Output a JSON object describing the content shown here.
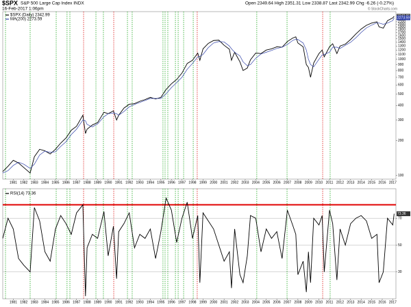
{
  "header": {
    "symbol": "$SPX",
    "name": "S&P 500 Large Cap Index INDX",
    "timestamp": "16-Feb-2017 1:06pm",
    "quote": "Open 2349.64 High 2351.31 Low 2338.87 Last 2342.99 Chg -6.26 (-0.27%)",
    "copyright": "© StockCharts.com"
  },
  "chart_data": [
    {
      "type": "line",
      "log_scale": true,
      "x": [
        1980.0,
        1980.5,
        1981.0,
        1981.5,
        1982.0,
        1982.6,
        1983.0,
        1983.5,
        1984.0,
        1984.5,
        1985.0,
        1985.5,
        1986.0,
        1986.5,
        1987.0,
        1987.6,
        1987.85,
        1988.0,
        1988.5,
        1989.0,
        1989.6,
        1990.0,
        1990.5,
        1990.8,
        1991.0,
        1991.5,
        1992.0,
        1992.5,
        1993.0,
        1993.5,
        1994.0,
        1994.5,
        1995.0,
        1995.5,
        1996.0,
        1996.5,
        1997.0,
        1997.5,
        1998.0,
        1998.5,
        1998.7,
        1999.0,
        1999.5,
        2000.0,
        2000.5,
        2001.0,
        2001.5,
        2001.7,
        2002.0,
        2002.5,
        2002.8,
        2003.2,
        2003.5,
        2004.0,
        2004.5,
        2005.0,
        2005.5,
        2006.0,
        2006.5,
        2007.0,
        2007.5,
        2007.8,
        2008.0,
        2008.5,
        2008.8,
        2009.0,
        2009.2,
        2009.5,
        2010.0,
        2010.3,
        2010.5,
        2011.0,
        2011.3,
        2011.7,
        2012.0,
        2012.5,
        2013.0,
        2013.5,
        2014.0,
        2014.5,
        2015.0,
        2015.5,
        2015.7,
        2016.1,
        2016.5,
        2017.0,
        2017.13
      ],
      "series": [
        {
          "name": "$SPX (Daily) 2342.99",
          "color": "#000000",
          "values": [
            108,
            120,
            135,
            128,
            117,
            105,
            145,
            168,
            163,
            153,
            168,
            190,
            210,
            245,
            265,
            330,
            230,
            250,
            272,
            285,
            350,
            340,
            360,
            300,
            330,
            380,
            410,
            415,
            435,
            450,
            470,
            455,
            470,
            550,
            615,
            670,
            760,
            920,
            980,
            1130,
            980,
            1230,
            1370,
            1450,
            1460,
            1320,
            1220,
            980,
            1150,
            950,
            800,
            840,
            990,
            1130,
            1120,
            1200,
            1230,
            1280,
            1270,
            1420,
            1520,
            1560,
            1380,
            1280,
            900,
            850,
            700,
            930,
            1120,
            1200,
            1050,
            1280,
            1360,
            1120,
            1300,
            1350,
            1480,
            1650,
            1820,
            1960,
            2050,
            2100,
            1900,
            1850,
            2150,
            2270,
            2342.99
          ]
        },
        {
          "name": "MA(200) 2273.59",
          "color": "#3344aa",
          "values": [
            105,
            110,
            122,
            130,
            125,
            115,
            125,
            150,
            162,
            158,
            160,
            178,
            195,
            225,
            250,
            300,
            295,
            275,
            262,
            278,
            320,
            340,
            345,
            340,
            330,
            355,
            390,
            408,
            425,
            442,
            460,
            460,
            460,
            505,
            570,
            630,
            700,
            820,
            920,
            1050,
            1060,
            1100,
            1260,
            1380,
            1420,
            1410,
            1300,
            1230,
            1150,
            1070,
            950,
            880,
            900,
            1020,
            1110,
            1150,
            1190,
            1240,
            1270,
            1340,
            1450,
            1490,
            1480,
            1380,
            1200,
            1000,
            900,
            860,
            1000,
            1090,
            1100,
            1150,
            1270,
            1270,
            1240,
            1320,
            1400,
            1530,
            1700,
            1860,
            1970,
            2060,
            2050,
            2000,
            2050,
            2150,
            2273.59
          ]
        }
      ],
      "xlim": [
        1980.0,
        2017.3
      ],
      "xticks": [
        1981,
        1982,
        1983,
        1984,
        1985,
        1986,
        1987,
        1988,
        1989,
        1990,
        1991,
        1992,
        1993,
        1994,
        1995,
        1996,
        1997,
        1998,
        1999,
        2000,
        2001,
        2002,
        2003,
        2004,
        2005,
        2006,
        2007,
        2008,
        2009,
        2010,
        2011,
        2012,
        2013,
        2014,
        2015,
        2016,
        2017
      ],
      "ylim": [
        93,
        2570
      ],
      "yticks": [
        100,
        200,
        300,
        400,
        500,
        600,
        700,
        800,
        900,
        1000,
        1100,
        1200,
        1300,
        1400,
        1500,
        1600,
        1700,
        1800,
        1900,
        2000,
        2100,
        2200
      ],
      "vlines": [
        {
          "x": 1980.26,
          "color": "#22aa22"
        },
        {
          "x": 1982.6,
          "color": "#22aa22"
        },
        {
          "x": 1985.07,
          "color": "#22aa22"
        },
        {
          "x": 1986.1,
          "color": "#22aa22"
        },
        {
          "x": 1986.37,
          "color": "#22aa22"
        },
        {
          "x": 1987.67,
          "color": "#dd1111"
        },
        {
          "x": 1988.84,
          "color": "#22aa22"
        },
        {
          "x": 1989.55,
          "color": "#22aa22"
        },
        {
          "x": 1990.53,
          "color": "#dd1111"
        },
        {
          "x": 1991.83,
          "color": "#22aa22"
        },
        {
          "x": 1992.28,
          "color": "#22aa22"
        },
        {
          "x": 1995.2,
          "color": "#22aa22"
        },
        {
          "x": 1995.4,
          "color": "#22aa22"
        },
        {
          "x": 1995.66,
          "color": "#22aa22"
        },
        {
          "x": 1996.38,
          "color": "#22aa22"
        },
        {
          "x": 1996.64,
          "color": "#22aa22"
        },
        {
          "x": 1997.16,
          "color": "#22aa22"
        },
        {
          "x": 1998.07,
          "color": "#22aa22"
        },
        {
          "x": 1998.45,
          "color": "#dd1111"
        },
        {
          "x": 2004.1,
          "color": "#22aa22"
        },
        {
          "x": 2006.97,
          "color": "#22aa22"
        },
        {
          "x": 2010.35,
          "color": "#dd1111"
        },
        {
          "x": 2011.06,
          "color": "#22aa22"
        }
      ]
    },
    {
      "type": "line",
      "x": [
        1980.0,
        1980.5,
        1981.0,
        1981.5,
        1982.0,
        1982.6,
        1983.0,
        1983.5,
        1984.0,
        1984.5,
        1985.0,
        1985.5,
        1986.0,
        1986.5,
        1987.0,
        1987.6,
        1987.85,
        1988.0,
        1988.5,
        1989.0,
        1989.6,
        1990.0,
        1990.5,
        1990.8,
        1991.0,
        1991.5,
        1992.0,
        1992.5,
        1993.0,
        1993.5,
        1994.0,
        1994.5,
        1995.0,
        1995.5,
        1996.0,
        1996.5,
        1997.0,
        1997.5,
        1998.0,
        1998.5,
        1998.7,
        1999.0,
        1999.5,
        2000.0,
        2000.5,
        2001.0,
        2001.5,
        2001.7,
        2002.0,
        2002.5,
        2002.8,
        2003.2,
        2003.5,
        2004.0,
        2004.5,
        2005.0,
        2005.5,
        2006.0,
        2006.5,
        2007.0,
        2007.5,
        2007.8,
        2008.0,
        2008.5,
        2008.8,
        2009.0,
        2009.2,
        2009.5,
        2010.0,
        2010.3,
        2010.5,
        2011.0,
        2011.3,
        2011.7,
        2012.0,
        2012.5,
        2013.0,
        2013.5,
        2014.0,
        2014.5,
        2015.0,
        2015.5,
        2015.7,
        2016.1,
        2016.5,
        2017.0,
        2017.13
      ],
      "series": [
        {
          "name": "RSI(14) 73.36",
          "color": "#000000",
          "values": [
            55,
            70,
            62,
            40,
            35,
            30,
            78,
            68,
            45,
            38,
            62,
            72,
            66,
            58,
            74,
            80,
            12,
            48,
            58,
            55,
            75,
            42,
            64,
            25,
            60,
            66,
            74,
            48,
            58,
            55,
            62,
            40,
            60,
            85,
            76,
            52,
            70,
            82,
            55,
            72,
            22,
            74,
            68,
            62,
            50,
            38,
            45,
            18,
            62,
            28,
            22,
            42,
            72,
            70,
            45,
            62,
            55,
            60,
            40,
            76,
            65,
            58,
            28,
            38,
            15,
            45,
            22,
            70,
            65,
            72,
            30,
            76,
            66,
            24,
            62,
            50,
            66,
            70,
            72,
            68,
            55,
            58,
            22,
            30,
            70,
            65,
            73.36
          ]
        }
      ],
      "xlim": [
        1980.0,
        2017.3
      ],
      "xticks": [
        1981,
        1982,
        1983,
        1984,
        1985,
        1986,
        1987,
        1988,
        1989,
        1990,
        1991,
        1992,
        1993,
        1994,
        1995,
        1996,
        1997,
        1998,
        1999,
        2000,
        2001,
        2002,
        2003,
        2004,
        2005,
        2006,
        2007,
        2008,
        2009,
        2010,
        2011,
        2012,
        2013,
        2014,
        2015,
        2016,
        2017
      ],
      "ylim": [
        10,
        92
      ],
      "yticks": [
        30,
        50,
        70
      ],
      "hlines": [
        {
          "value": 80,
          "color": "#e00000"
        }
      ]
    }
  ]
}
